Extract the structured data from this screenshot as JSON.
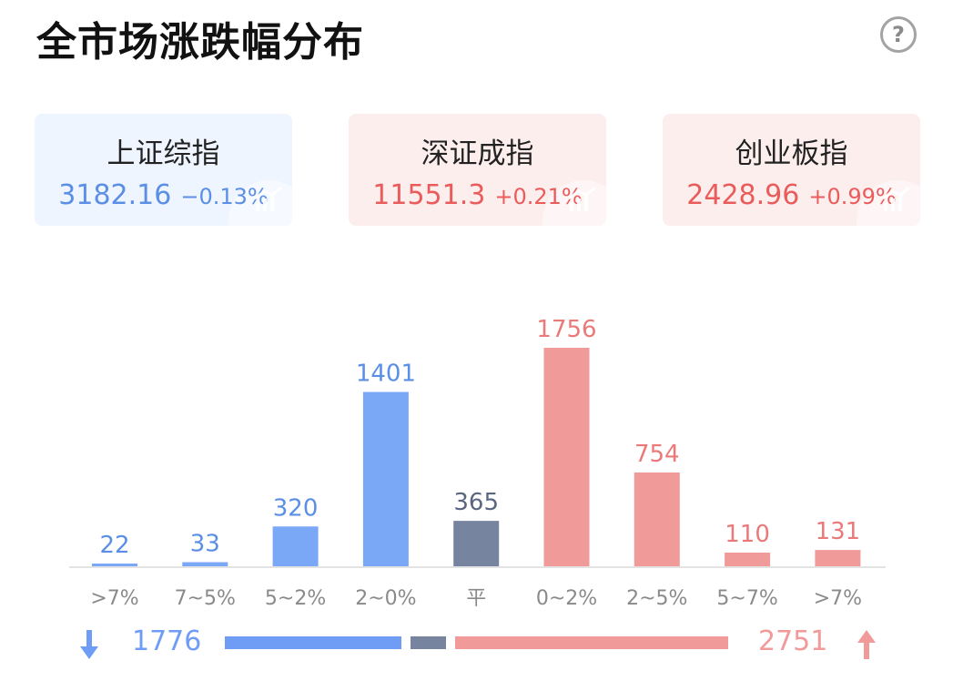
{
  "title": "全市场涨跌幅分布",
  "help_symbol": "?",
  "indices": [
    {
      "name": "上证综指",
      "value": "3182.16",
      "change": "−0.13%",
      "color": "#5b8fe6",
      "trend": "down"
    },
    {
      "name": "深证成指",
      "value": "11551.3",
      "change": "+0.21%",
      "color": "#ea5c5c",
      "trend": "up"
    },
    {
      "name": "创业板指",
      "value": "2428.96",
      "change": "+0.99%",
      "color": "#ea5c5c",
      "trend": "up"
    }
  ],
  "chart_data": {
    "type": "bar",
    "categories": [
      ">7%",
      "7~5%",
      "5~2%",
      "2~0%",
      "平",
      "0~2%",
      "2~5%",
      "5~7%",
      ">7%"
    ],
    "values": [
      22,
      33,
      320,
      1401,
      365,
      1756,
      754,
      110,
      131
    ],
    "colors": [
      "#7aa8f7",
      "#7aa8f7",
      "#7aa8f7",
      "#7aa8f7",
      "#77849f",
      "#f09a9a",
      "#f09a9a",
      "#f09a9a",
      "#f09a9a"
    ],
    "label_colors": [
      "#5b8fe6",
      "#5b8fe6",
      "#5b8fe6",
      "#5b8fe6",
      "#5a6680",
      "#ea7a7a",
      "#ea7a7a",
      "#ea7a7a",
      "#ea7a7a"
    ],
    "ylim": [
      0,
      1756
    ]
  },
  "summary": {
    "down_count": "1776",
    "up_count": "2751",
    "down_color": "#6f9df5",
    "flat_color": "#77849f",
    "up_color": "#f09a9a"
  }
}
